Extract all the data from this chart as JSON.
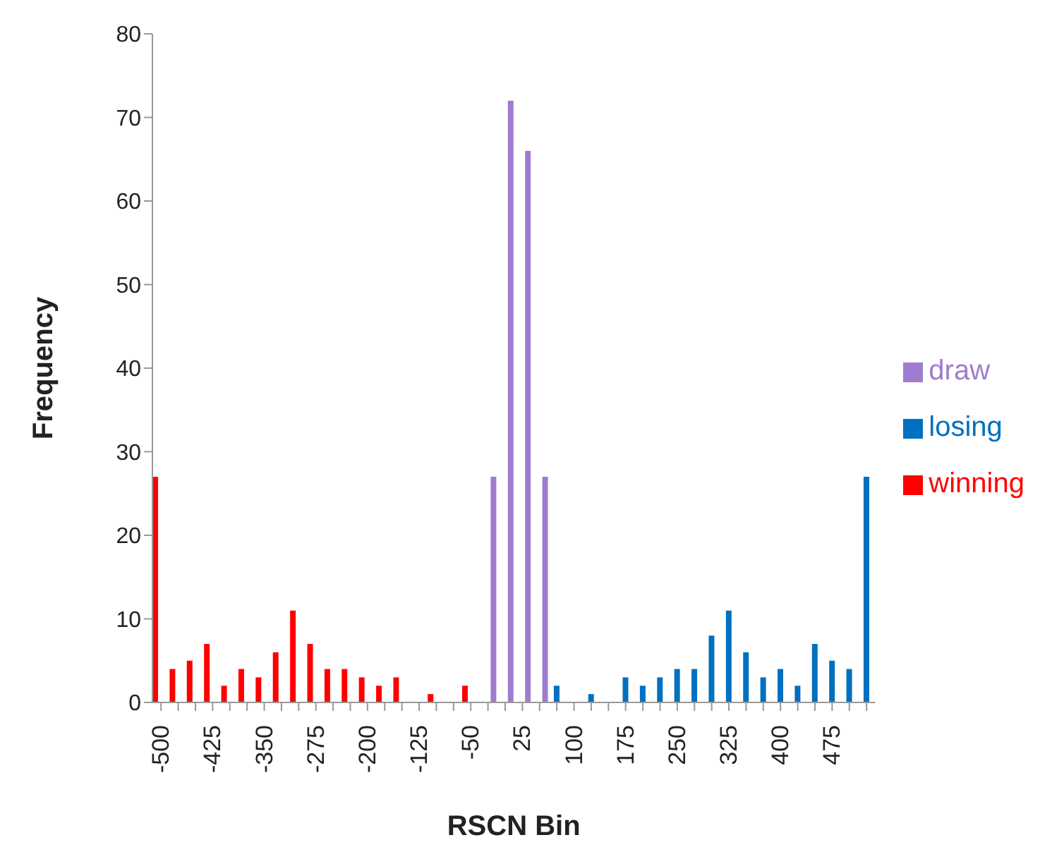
{
  "chart_data": {
    "type": "bar",
    "xlabel": "RSCN Bin",
    "ylabel": "Frequency",
    "categories": [
      "-500",
      null,
      null,
      "-425",
      null,
      null,
      "-350",
      null,
      null,
      "-275",
      null,
      null,
      "-200",
      null,
      null,
      "-125",
      null,
      null,
      "-50",
      null,
      null,
      "25",
      null,
      null,
      "100",
      null,
      null,
      "175",
      null,
      null,
      "250",
      null,
      null,
      "325",
      null,
      null,
      "400",
      null,
      null,
      "475",
      null,
      null
    ],
    "series": [
      {
        "name": "winning",
        "color": "#ff0000",
        "values": [
          27,
          4,
          5,
          7,
          2,
          4,
          3,
          6,
          11,
          7,
          4,
          4,
          3,
          2,
          3,
          null,
          1,
          null,
          2,
          null,
          null,
          null,
          null,
          null,
          null,
          null,
          null,
          null,
          null,
          null,
          null,
          null,
          null,
          null,
          null,
          null,
          null,
          null,
          null,
          null,
          null,
          null
        ]
      },
      {
        "name": "losing",
        "color": "#0070c0",
        "values": [
          null,
          null,
          null,
          null,
          null,
          null,
          null,
          null,
          null,
          null,
          null,
          null,
          null,
          null,
          null,
          null,
          null,
          null,
          null,
          null,
          null,
          null,
          null,
          2,
          null,
          1,
          null,
          3,
          2,
          3,
          4,
          4,
          8,
          11,
          6,
          3,
          4,
          2,
          7,
          5,
          4,
          27
        ]
      },
      {
        "name": "draw",
        "color": "#a07cd0",
        "values": [
          null,
          null,
          null,
          null,
          null,
          null,
          null,
          null,
          null,
          null,
          null,
          null,
          null,
          null,
          null,
          null,
          null,
          null,
          null,
          27,
          72,
          66,
          27,
          null,
          null,
          null,
          null,
          null,
          null,
          null,
          null,
          null,
          null,
          null,
          null,
          null,
          null,
          null,
          null,
          null,
          null,
          null
        ]
      }
    ],
    "ylim": [
      0,
      80
    ],
    "yticks": [
      0,
      10,
      20,
      30,
      40,
      50,
      60,
      70,
      80
    ],
    "grid": false,
    "legend": "right"
  }
}
